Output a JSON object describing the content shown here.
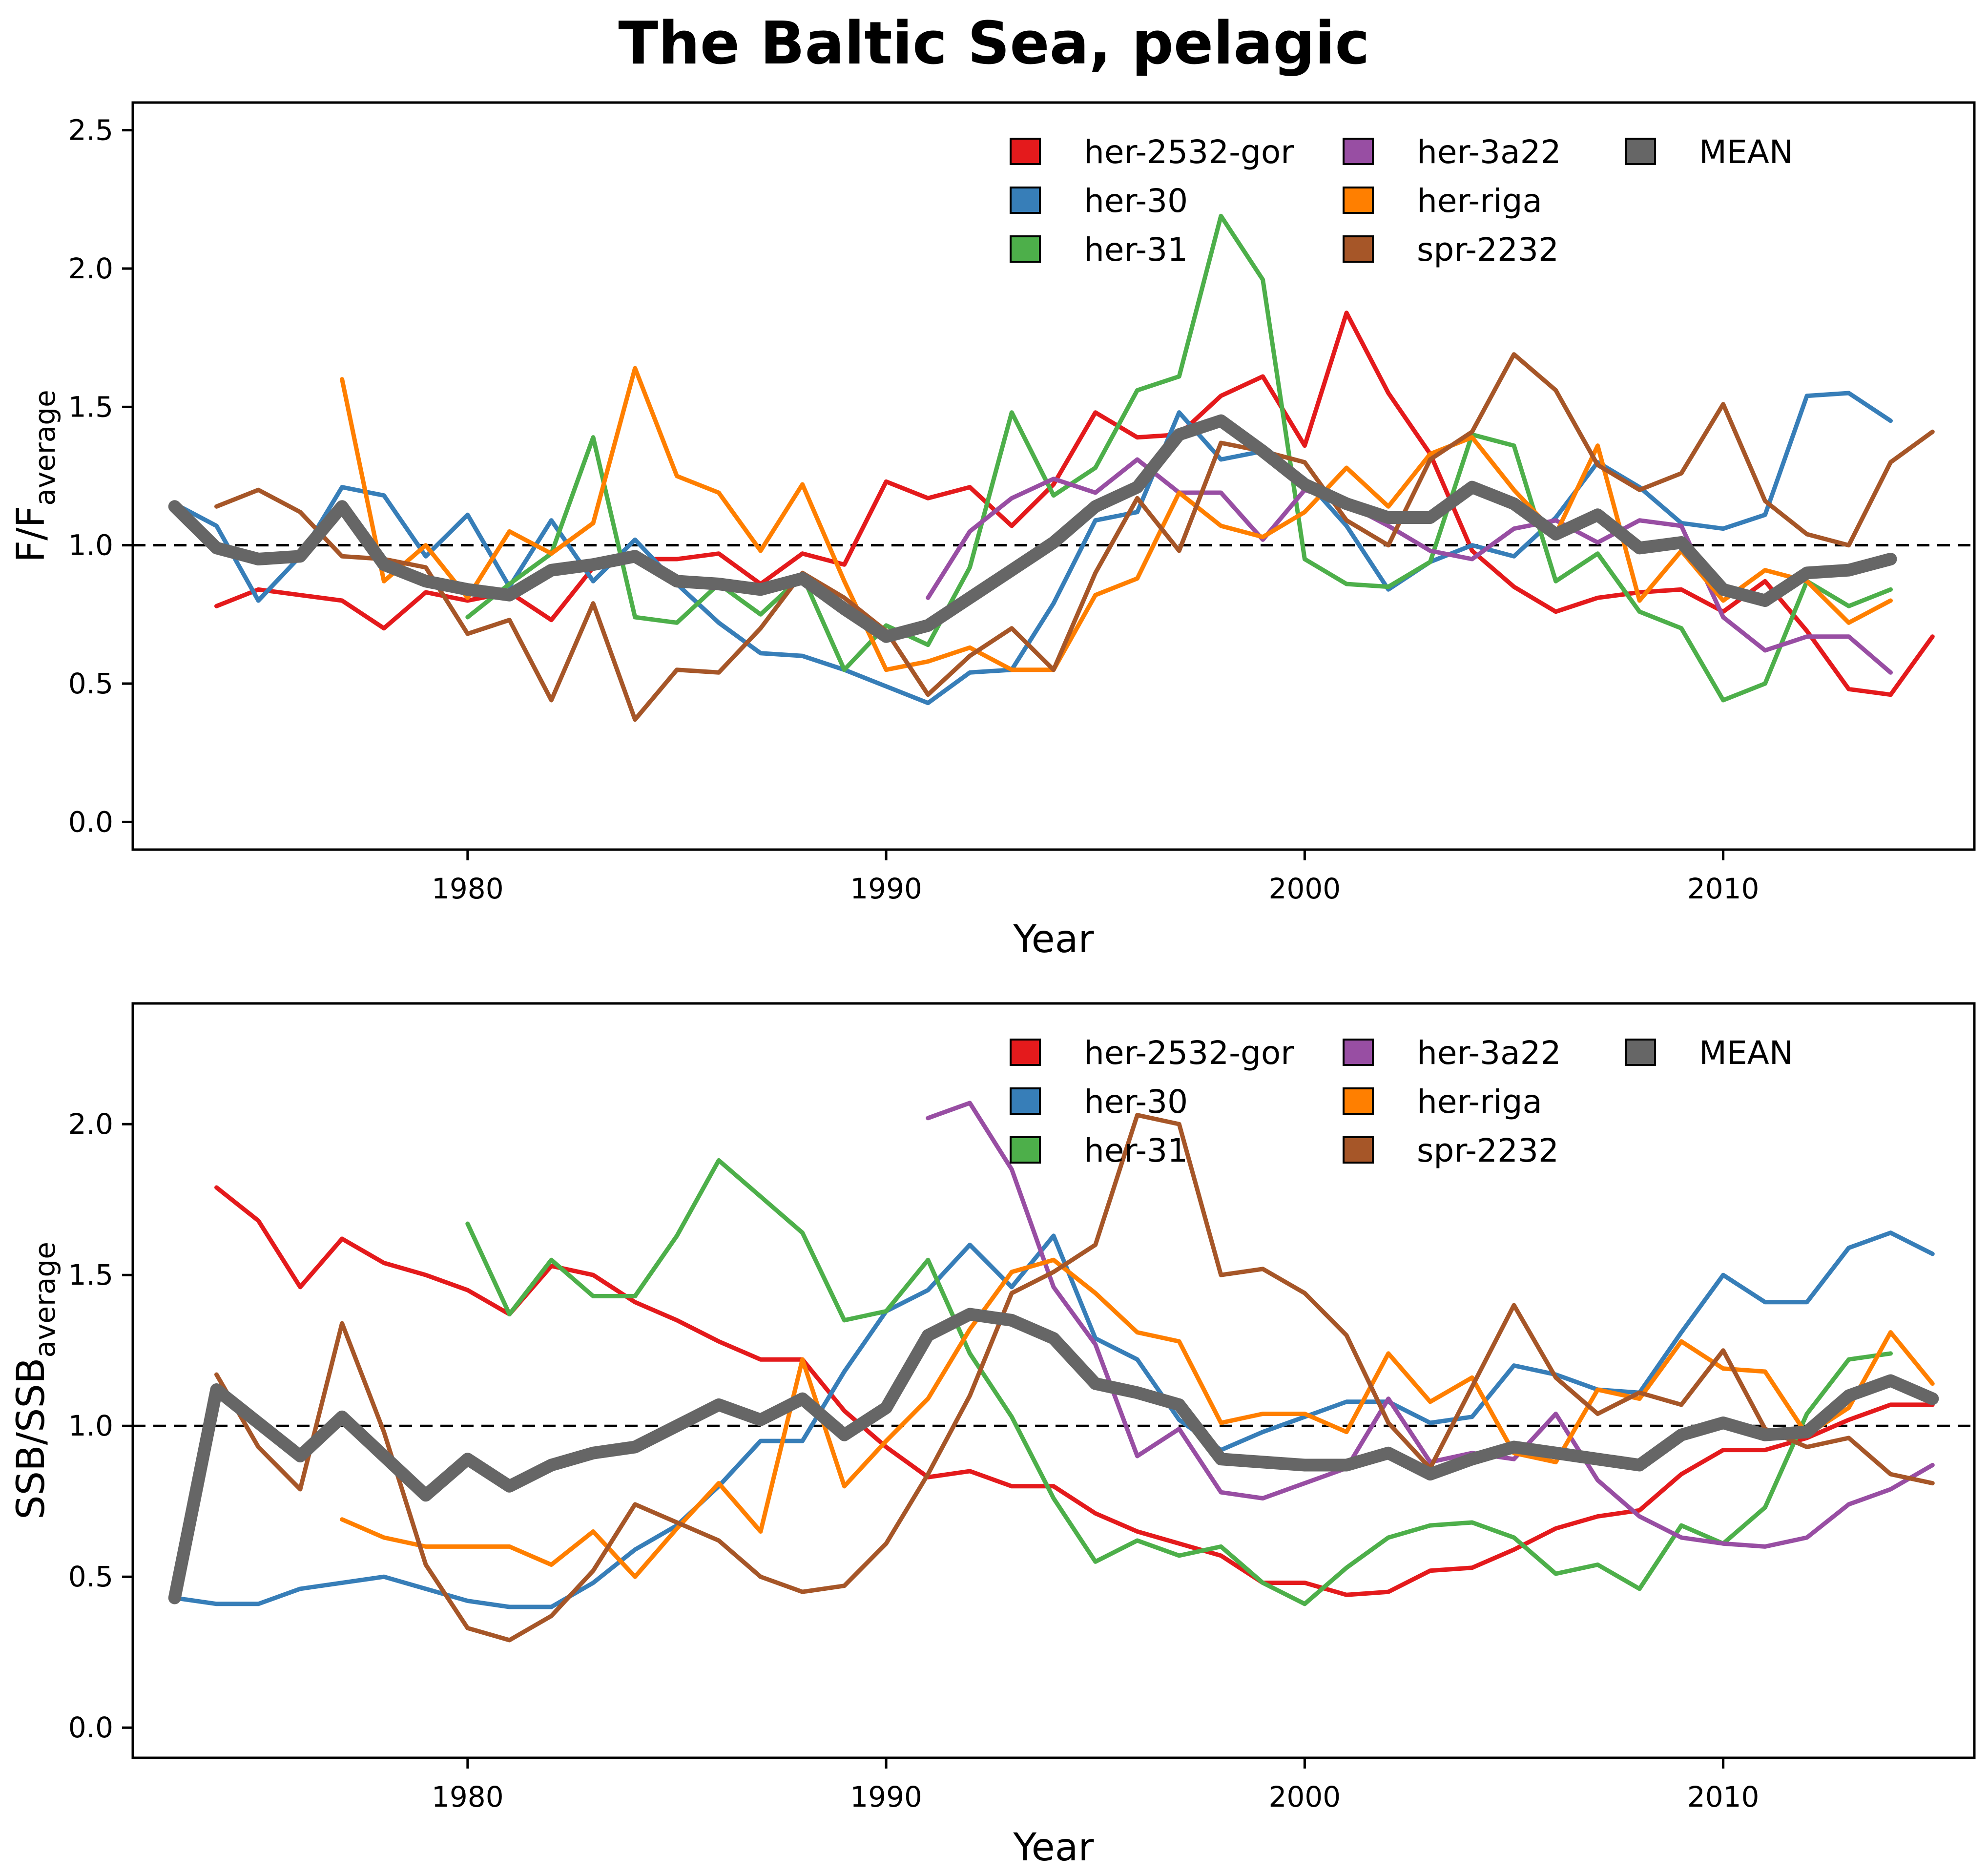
{
  "title": "The Baltic Sea, pelagic",
  "chart_data": [
    {
      "type": "line",
      "ylabel_main": "F/F",
      "ylabel_sub": "average",
      "xlabel": "Year",
      "xlim": [
        1972,
        2016
      ],
      "ylim": [
        -0.1,
        2.6
      ],
      "xticks": [
        1980,
        1990,
        2000,
        2010
      ],
      "yticks": [
        0.0,
        0.5,
        1.0,
        1.5,
        2.0,
        2.5
      ],
      "ytick_labels": [
        "0.0",
        "0.5",
        "1.0",
        "1.5",
        "2.0",
        "2.5"
      ],
      "reference_line": 1.0,
      "legend_position": "top-right",
      "series": [
        {
          "name": "her-2532-gor",
          "color": "#e41a1c",
          "start": 1974,
          "values": [
            0.78,
            0.84,
            0.82,
            0.8,
            0.7,
            0.83,
            0.8,
            0.83,
            0.73,
            0.92,
            0.95,
            0.95,
            0.97,
            0.86,
            0.97,
            0.93,
            1.23,
            1.17,
            1.21,
            1.07,
            1.22,
            1.48,
            1.39,
            1.4,
            1.54,
            1.61,
            1.36,
            1.84,
            1.55,
            1.33,
            0.98,
            0.85,
            0.76,
            0.81,
            0.83,
            0.84,
            0.76,
            0.87,
            0.69,
            0.48,
            0.46,
            0.67
          ]
        },
        {
          "name": "her-30",
          "color": "#377eb8",
          "start": 1973,
          "values": [
            1.15,
            1.07,
            0.8,
            0.96,
            1.21,
            1.18,
            0.96,
            1.11,
            0.85,
            1.09,
            0.87,
            1.02,
            0.86,
            0.72,
            0.61,
            0.6,
            0.55,
            0.49,
            0.43,
            0.54,
            0.55,
            0.79,
            1.09,
            1.12,
            1.48,
            1.31,
            1.34,
            1.24,
            1.07,
            0.84,
            0.94,
            1.0,
            0.96,
            1.1,
            1.3,
            1.21,
            1.08,
            1.06,
            1.11,
            1.54,
            1.55,
            1.45
          ]
        },
        {
          "name": "her-31",
          "color": "#4daf4a",
          "start": 1980,
          "values": [
            0.74,
            0.86,
            0.97,
            1.39,
            0.74,
            0.72,
            0.86,
            0.75,
            0.89,
            0.55,
            0.71,
            0.64,
            0.92,
            1.48,
            1.18,
            1.28,
            1.56,
            1.61,
            2.19,
            1.96,
            0.95,
            0.86,
            0.85,
            0.94,
            1.4,
            1.36,
            0.87,
            0.97,
            0.76,
            0.7,
            0.44,
            0.5,
            0.87,
            0.78,
            0.84
          ]
        },
        {
          "name": "her-3a22",
          "color": "#984ea3",
          "start": 1991,
          "values": [
            0.81,
            1.05,
            1.17,
            1.24,
            1.19,
            1.31,
            1.19,
            1.19,
            1.02,
            1.2,
            1.15,
            1.07,
            0.98,
            0.95,
            1.06,
            1.09,
            1.01,
            1.09,
            1.07,
            0.74,
            0.62,
            0.67,
            0.67,
            0.54
          ]
        },
        {
          "name": "her-riga",
          "color": "#ff7f00",
          "start": 1977,
          "values": [
            1.6,
            0.87,
            1.0,
            0.81,
            1.05,
            0.97,
            1.08,
            1.64,
            1.25,
            1.19,
            0.98,
            1.22,
            0.87,
            0.55,
            0.58,
            0.63,
            0.55,
            0.55,
            0.82,
            0.88,
            1.19,
            1.07,
            1.03,
            1.12,
            1.28,
            1.14,
            1.33,
            1.39,
            1.2,
            1.04,
            1.36,
            0.8,
            0.98,
            0.8,
            0.91,
            0.87,
            0.72,
            0.8
          ]
        },
        {
          "name": "spr-2232",
          "color": "#a65628",
          "start": 1974,
          "values": [
            1.14,
            1.2,
            1.12,
            0.96,
            0.95,
            0.92,
            0.68,
            0.73,
            0.44,
            0.79,
            0.37,
            0.55,
            0.54,
            0.7,
            0.9,
            0.81,
            0.69,
            0.46,
            0.6,
            0.7,
            0.55,
            0.9,
            1.17,
            0.98,
            1.37,
            1.34,
            1.3,
            1.09,
            1.0,
            1.31,
            1.41,
            1.69,
            1.56,
            1.29,
            1.2,
            1.26,
            1.51,
            1.16,
            1.04,
            1.0,
            1.3,
            1.41
          ]
        },
        {
          "name": "MEAN",
          "color": "#666666",
          "start": 1973,
          "width": 26,
          "values": [
            1.14,
            0.99,
            0.95,
            0.96,
            1.14,
            0.93,
            0.87,
            0.84,
            0.82,
            0.91,
            0.93,
            0.96,
            0.87,
            0.86,
            0.84,
            0.88,
            0.77,
            0.67,
            0.71,
            0.81,
            0.91,
            1.01,
            1.14,
            1.21,
            1.4,
            1.45,
            1.34,
            1.22,
            1.15,
            1.1,
            1.1,
            1.21,
            1.15,
            1.04,
            1.11,
            0.99,
            1.01,
            0.84,
            0.8,
            0.9,
            0.91,
            0.95
          ]
        }
      ]
    },
    {
      "type": "line",
      "ylabel_main": "SSB/SSB",
      "ylabel_sub": "average",
      "xlabel": "Year",
      "xlim": [
        1972,
        2016
      ],
      "ylim": [
        -0.1,
        2.4
      ],
      "xticks": [
        1980,
        1990,
        2000,
        2010
      ],
      "yticks": [
        0.0,
        0.5,
        1.0,
        1.5,
        2.0
      ],
      "ytick_labels": [
        "0.0",
        "0.5",
        "1.0",
        "1.5",
        "2.0"
      ],
      "reference_line": 1.0,
      "legend_position": "top-right",
      "series": [
        {
          "name": "her-2532-gor",
          "color": "#e41a1c",
          "start": 1974,
          "values": [
            1.79,
            1.68,
            1.46,
            1.62,
            1.54,
            1.5,
            1.45,
            1.37,
            1.53,
            1.5,
            1.41,
            1.35,
            1.28,
            1.22,
            1.22,
            1.05,
            0.93,
            0.83,
            0.85,
            0.8,
            0.8,
            0.71,
            0.65,
            0.61,
            0.57,
            0.48,
            0.48,
            0.44,
            0.45,
            0.52,
            0.53,
            0.59,
            0.66,
            0.7,
            0.72,
            0.84,
            0.92,
            0.92,
            0.96,
            1.02,
            1.07,
            1.07
          ]
        },
        {
          "name": "her-30",
          "color": "#377eb8",
          "start": 1973,
          "values": [
            0.43,
            0.41,
            0.41,
            0.46,
            0.48,
            0.5,
            0.46,
            0.42,
            0.4,
            0.4,
            0.48,
            0.59,
            0.67,
            0.8,
            0.95,
            0.95,
            1.18,
            1.38,
            1.45,
            1.6,
            1.46,
            1.63,
            1.29,
            1.22,
            1.02,
            0.92,
            0.98,
            1.03,
            1.08,
            1.08,
            1.01,
            1.03,
            1.2,
            1.17,
            1.12,
            1.11,
            1.31,
            1.5,
            1.41,
            1.41,
            1.59,
            1.64,
            1.57
          ]
        },
        {
          "name": "her-31",
          "color": "#4daf4a",
          "start": 1980,
          "values": [
            1.67,
            1.37,
            1.55,
            1.43,
            1.43,
            1.63,
            1.88,
            1.76,
            1.64,
            1.35,
            1.38,
            1.55,
            1.24,
            1.03,
            0.76,
            0.55,
            0.62,
            0.57,
            0.6,
            0.48,
            0.41,
            0.53,
            0.63,
            0.67,
            0.68,
            0.63,
            0.51,
            0.54,
            0.46,
            0.67,
            0.61,
            0.73,
            1.04,
            1.22,
            1.24
          ]
        },
        {
          "name": "her-3a22",
          "color": "#984ea3",
          "start": 1991,
          "values": [
            2.02,
            2.07,
            1.85,
            1.46,
            1.27,
            0.9,
            0.99,
            0.78,
            0.76,
            0.81,
            0.86,
            1.09,
            0.88,
            0.91,
            0.89,
            1.04,
            0.82,
            0.7,
            0.63,
            0.61,
            0.6,
            0.63,
            0.74,
            0.79,
            0.87
          ]
        },
        {
          "name": "her-riga",
          "color": "#ff7f00",
          "start": 1977,
          "values": [
            0.69,
            0.63,
            0.6,
            0.6,
            0.6,
            0.54,
            0.65,
            0.5,
            0.66,
            0.81,
            0.65,
            1.22,
            0.8,
            0.95,
            1.09,
            1.32,
            1.51,
            1.55,
            1.44,
            1.31,
            1.28,
            1.01,
            1.04,
            1.04,
            0.98,
            1.24,
            1.08,
            1.16,
            0.91,
            0.88,
            1.12,
            1.09,
            1.28,
            1.19,
            1.18,
            0.97,
            1.06,
            1.31,
            1.14
          ]
        },
        {
          "name": "spr-2232",
          "color": "#a65628",
          "start": 1974,
          "values": [
            1.17,
            0.93,
            0.79,
            1.34,
            0.98,
            0.54,
            0.33,
            0.29,
            0.37,
            0.52,
            0.74,
            0.68,
            0.62,
            0.5,
            0.45,
            0.47,
            0.61,
            0.84,
            1.1,
            1.44,
            1.51,
            1.6,
            2.03,
            2.0,
            1.5,
            1.52,
            1.44,
            1.3,
            1.01,
            0.86,
            1.13,
            1.4,
            1.16,
            1.04,
            1.11,
            1.07,
            1.25,
            0.99,
            0.93,
            0.96,
            0.84,
            0.81
          ]
        },
        {
          "name": "MEAN",
          "color": "#666666",
          "start": 1973,
          "width": 26,
          "values": [
            0.43,
            1.12,
            1.01,
            0.9,
            1.03,
            0.9,
            0.77,
            0.89,
            0.8,
            0.87,
            0.91,
            0.93,
            1.0,
            1.07,
            1.02,
            1.09,
            0.97,
            1.06,
            1.3,
            1.37,
            1.35,
            1.29,
            1.14,
            1.11,
            1.07,
            0.89,
            0.88,
            0.87,
            0.87,
            0.91,
            0.84,
            0.89,
            0.93,
            0.91,
            0.89,
            0.87,
            0.97,
            1.01,
            0.97,
            0.98,
            1.1,
            1.15,
            1.09
          ]
        }
      ]
    }
  ]
}
